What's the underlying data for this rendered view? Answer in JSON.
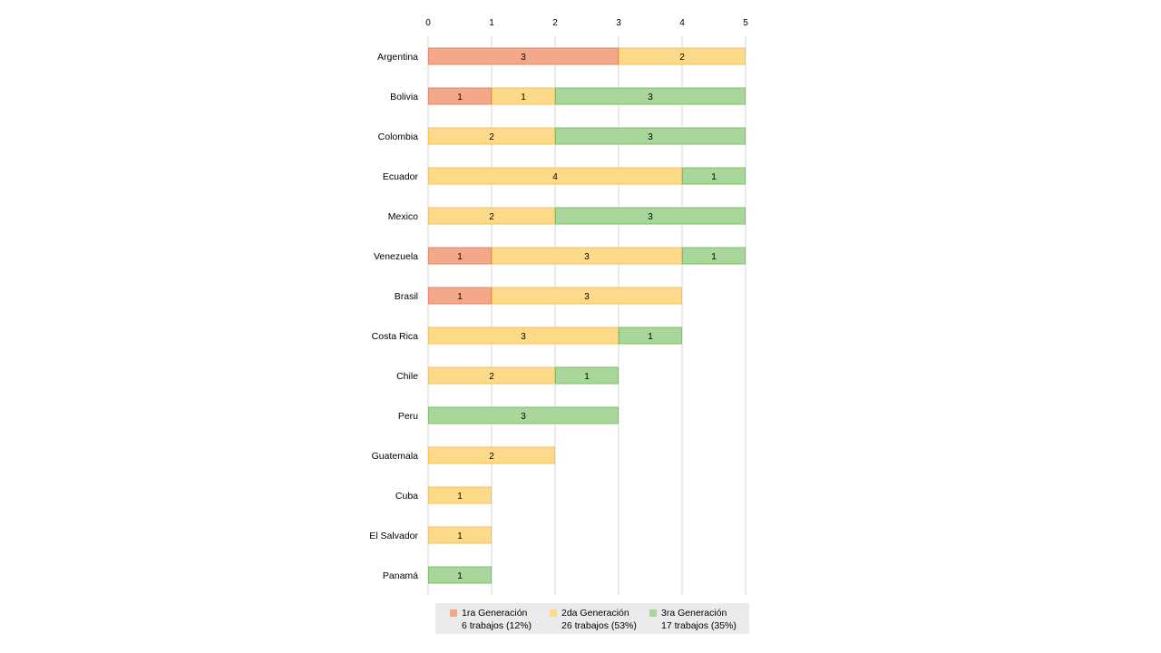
{
  "chart_data": {
    "type": "bar",
    "orientation": "horizontal",
    "stacked": true,
    "categories": [
      "Argentina",
      "Bolivia",
      "Colombia",
      "Ecuador",
      "Mexico",
      "Venezuela",
      "Brasil",
      "Costa Rica",
      "Chile",
      "Peru",
      "Guatemala",
      "Cuba",
      "El Salvador",
      "Panamá"
    ],
    "series": [
      {
        "name": "1ra Generación",
        "summary": "6 trabajos (12%)",
        "color": "#f4a88a",
        "border": "#e8856a",
        "values": [
          3,
          1,
          0,
          0,
          0,
          1,
          1,
          0,
          0,
          0,
          0,
          0,
          0,
          0
        ]
      },
      {
        "name": "2da Generación",
        "summary": "26 trabajos (53%)",
        "color": "#fdd98a",
        "border": "#f5c15a",
        "values": [
          2,
          1,
          2,
          4,
          2,
          3,
          3,
          3,
          2,
          0,
          2,
          1,
          1,
          0
        ]
      },
      {
        "name": "3ra Generación",
        "summary": "17 trabajos (35%)",
        "color": "#a9d69a",
        "border": "#80bd6e",
        "values": [
          0,
          3,
          3,
          1,
          3,
          1,
          0,
          1,
          1,
          3,
          0,
          0,
          0,
          1
        ]
      }
    ],
    "xlim": [
      0,
      5
    ],
    "x_ticks": [
      "0",
      "1",
      "2",
      "3",
      "4",
      "5"
    ],
    "x_axis_position": "top",
    "grid": true,
    "legend_position": "bottom",
    "title": "",
    "xlabel": "",
    "ylabel": ""
  }
}
